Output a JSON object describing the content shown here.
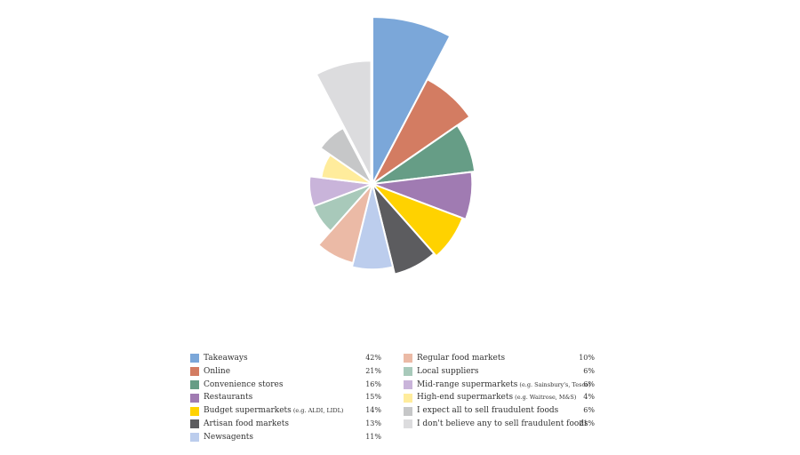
{
  "chart_data": {
    "type": "pie",
    "variant": "polar-area",
    "start": "top, clockwise",
    "series": [
      {
        "label": "Takeaways",
        "note": "",
        "value": 42,
        "color": "#7BA7D9"
      },
      {
        "label": "Online",
        "note": "",
        "value": 21,
        "color": "#D37C62"
      },
      {
        "label": "Convenience stores",
        "note": "",
        "value": 16,
        "color": "#669D86"
      },
      {
        "label": "Restaurants",
        "note": "",
        "value": 15,
        "color": "#A07BB2"
      },
      {
        "label": "Budget supermarkets",
        "note": "(e.g. ALDI, LIDL)",
        "value": 14,
        "color": "#FFD200"
      },
      {
        "label": "Artisan food markets",
        "note": "",
        "value": 13,
        "color": "#5C5C5F"
      },
      {
        "label": "Newsagents",
        "note": "",
        "value": 11,
        "color": "#BCCDED"
      },
      {
        "label": "Regular food markets",
        "note": "",
        "value": 10,
        "color": "#EBBAA6"
      },
      {
        "label": "Local suppliers",
        "note": "",
        "value": 6,
        "color": "#A8C9BA"
      },
      {
        "label": "Mid-range supermarkets",
        "note": "(e.g. Sainsbury's, Tesco)",
        "value": 6,
        "color": "#C9B4DA"
      },
      {
        "label": "High-end supermarkets",
        "note": "(e.g. Waitrose, M&S)",
        "value": 4,
        "color": "#FFEC9C"
      },
      {
        "label": "I expect all to sell fraudulent foods",
        "note": "",
        "value": 6,
        "color": "#C6C7C8"
      },
      {
        "label": "I don't believe any to sell fraudulent foods",
        "note": "",
        "value": 21,
        "color": "#DCDCDE",
        "exploded": true
      }
    ],
    "legend": "bottom, two columns",
    "value_suffix": "%"
  }
}
